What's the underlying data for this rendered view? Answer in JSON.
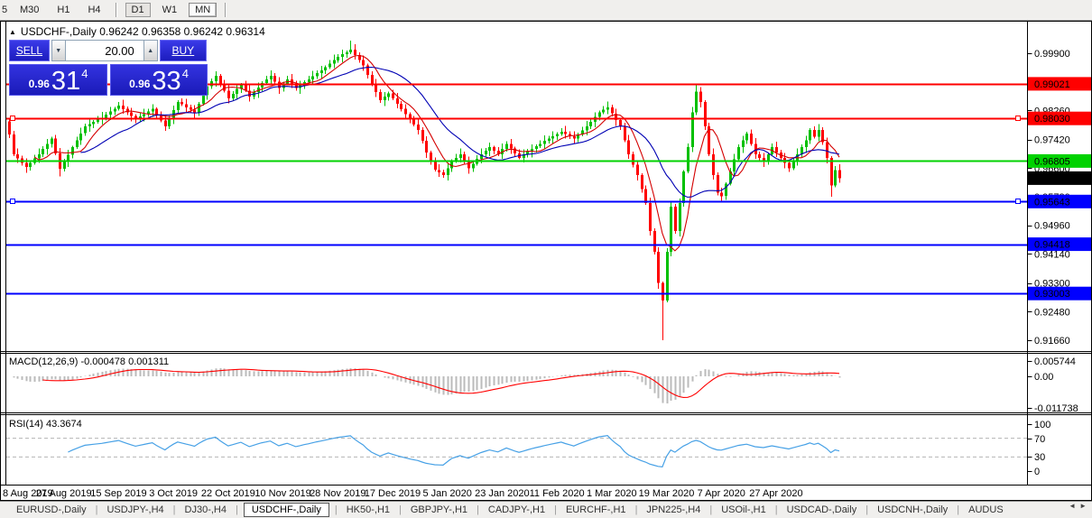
{
  "toolbar": {
    "partial_label": "5",
    "timeframes": [
      "M30",
      "H1",
      "H4",
      "D1",
      "W1",
      "MN"
    ],
    "active_timeframe": "D1"
  },
  "symbol_title": {
    "arrow": "▲",
    "text": "USDCHF-,Daily  0.96242 0.96358 0.96242 0.96314"
  },
  "trade_panel": {
    "sell_label": "SELL",
    "buy_label": "BUY",
    "volume": "20.00",
    "spin_down": "▼",
    "spin_up": "▲",
    "sell_price_small": "0.96",
    "sell_price_big": "31",
    "sell_price_sup": "4",
    "buy_price_small": "0.96",
    "buy_price_big": "33",
    "buy_price_sup": "4"
  },
  "colors": {
    "bull": "#00C000",
    "bear": "#FF0000",
    "ma_fast": "#D40000",
    "ma_slow": "#0000B4",
    "level_red": "#FF0000",
    "level_green": "#00D200",
    "level_blue": "#0000FF",
    "current_badge": "#000000",
    "macd_hist": "#BBBBBB",
    "macd_signal": "#FF0000",
    "rsi_line": "#47A1E6"
  },
  "chart_data": {
    "type": "candlestick+indicators",
    "symbol": "USDCHF-",
    "timeframe": "Daily",
    "ohlc_readout": {
      "open": "0.96242",
      "high": "0.96358",
      "low": "0.96242",
      "close": "0.96314"
    },
    "x_ticks": [
      "8 Aug 2019",
      "27 Aug 2019",
      "15 Sep 2019",
      "3 Oct 2019",
      "22 Oct 2019",
      "10 Nov 2019",
      "28 Nov 2019",
      "17 Dec 2019",
      "5 Jan 2020",
      "23 Jan 2020",
      "11 Feb 2020",
      "1 Mar 2020",
      "19 Mar 2020",
      "7 Apr 2020",
      "27 Apr 2020"
    ],
    "y_axis_ticks": [
      "0.99900",
      "0.98260",
      "0.97420",
      "0.96600",
      "0.95780",
      "0.94960",
      "0.94140",
      "0.93300",
      "0.92480",
      "0.91660"
    ],
    "levels": [
      {
        "label": "0.99021",
        "price": 0.99021,
        "color": "#FF0000",
        "text": "#FFFFFF",
        "handles": false
      },
      {
        "label": "0.98030",
        "price": 0.9803,
        "color": "#FF0000",
        "text": "#FFFFFF",
        "handles": true
      },
      {
        "label": "0.96805",
        "price": 0.96805,
        "color": "#00D200",
        "text": "#000000",
        "handles": false
      },
      {
        "label": "0.95643",
        "price": 0.95643,
        "color": "#0000FF",
        "text": "#FFFFFF",
        "handles": true
      },
      {
        "label": "0.94418",
        "price": 0.94418,
        "color": "#0000FF",
        "text": "#FFFFFF",
        "handles": false
      },
      {
        "label": "0.93003",
        "price": 0.93003,
        "color": "#0000FF",
        "text": "#FFFFFF",
        "handles": false
      }
    ],
    "current_price": {
      "label": "0.96314",
      "price": 0.96314
    },
    "first_open": 0.9795,
    "closes": [
      0.9757,
      0.97,
      0.9688,
      0.9675,
      0.9663,
      0.9675,
      0.9688,
      0.97,
      0.9715,
      0.973,
      0.9745,
      0.9702,
      0.9658,
      0.9679,
      0.9699,
      0.972,
      0.974,
      0.976,
      0.978,
      0.9786,
      0.9793,
      0.9799,
      0.9805,
      0.9814,
      0.9823,
      0.9831,
      0.984,
      0.983,
      0.982,
      0.981,
      0.98,
      0.9808,
      0.9815,
      0.9823,
      0.983,
      0.9813,
      0.9797,
      0.978,
      0.9803,
      0.9827,
      0.985,
      0.9843,
      0.9835,
      0.9828,
      0.982,
      0.9845,
      0.987,
      0.9895,
      0.991,
      0.9925,
      0.9903,
      0.9882,
      0.986,
      0.9873,
      0.9887,
      0.99,
      0.9883,
      0.9865,
      0.9878,
      0.9892,
      0.9905,
      0.9915,
      0.9925,
      0.9908,
      0.989,
      0.9903,
      0.9915,
      0.9903,
      0.989,
      0.9898,
      0.9907,
      0.9915,
      0.9924,
      0.9933,
      0.9941,
      0.995,
      0.996,
      0.997,
      0.998,
      0.9987,
      0.9993,
      1.0,
      0.9985,
      0.997,
      0.9955,
      0.9928,
      0.99,
      0.9878,
      0.9855,
      0.9865,
      0.9875,
      0.986,
      0.9845,
      0.983,
      0.9815,
      0.98,
      0.9785,
      0.977,
      0.9738,
      0.9705,
      0.968,
      0.9655,
      0.9648,
      0.964,
      0.966,
      0.968,
      0.969,
      0.97,
      0.968,
      0.966,
      0.9673,
      0.9687,
      0.97,
      0.971,
      0.972,
      0.971,
      0.97,
      0.9715,
      0.973,
      0.9717,
      0.9703,
      0.969,
      0.9698,
      0.9707,
      0.9715,
      0.9723,
      0.973,
      0.9738,
      0.9745,
      0.9752,
      0.9758,
      0.9765,
      0.9758,
      0.9752,
      0.9745,
      0.9757,
      0.9768,
      0.978,
      0.9793,
      0.9807,
      0.982,
      0.9828,
      0.9835,
      0.9817,
      0.9798,
      0.978,
      0.974,
      0.97,
      0.967,
      0.964,
      0.96,
      0.956,
      0.948,
      0.942,
      0.933,
      0.928,
      0.942,
      0.955,
      0.948,
      0.956,
      0.965,
      0.972,
      0.982,
      0.988,
      0.985,
      0.978,
      0.97,
      0.964,
      0.959,
      0.958,
      0.9615,
      0.965,
      0.9685,
      0.972,
      0.974,
      0.976,
      0.973,
      0.97,
      0.969,
      0.968,
      0.97,
      0.972,
      0.9705,
      0.969,
      0.9675,
      0.966,
      0.968,
      0.97,
      0.972,
      0.974,
      0.977,
      0.975,
      0.977,
      0.9735,
      0.969,
      0.961,
      0.9655,
      0.9631
    ],
    "wick_overrides": {
      "12": {
        "low": 0.9636
      },
      "81": {
        "high": 1.0026
      },
      "155": {
        "low": 0.9166
      },
      "163": {
        "high": 0.9901
      },
      "195": {
        "low": 0.9578
      }
    },
    "ma_fast_period": 7,
    "ma_slow_period": 18,
    "macd": {
      "title_text": "MACD(12,26,9) -0.000478 0.001311",
      "params": [
        12,
        26,
        9
      ],
      "value_main": -0.000478,
      "value_signal": 0.001311,
      "axis": [
        "0.005744",
        "0.00",
        "-0.011738"
      ]
    },
    "rsi": {
      "title_text": "RSI(14) 43.3674",
      "period": 14,
      "value": 43.3674,
      "axis": [
        "100",
        "70",
        "30",
        "0"
      ],
      "guide_levels": [
        70,
        30
      ]
    }
  },
  "bottom_tabs": {
    "tabs": [
      "EURUSD-,Daily",
      "USDJPY-,H4",
      "DJ30-,H4",
      "USDCHF-,Daily",
      "HK50-,H1",
      "GBPJPY-,H1",
      "CADJPY-,H1",
      "EURCHF-,H1",
      "JPN225-,H4",
      "USOil-,H1",
      "USDCAD-,Daily",
      "USDCNH-,Daily",
      "AUDUS"
    ],
    "active": "USDCHF-,Daily",
    "scroll_left": "◄",
    "scroll_right": "►"
  }
}
